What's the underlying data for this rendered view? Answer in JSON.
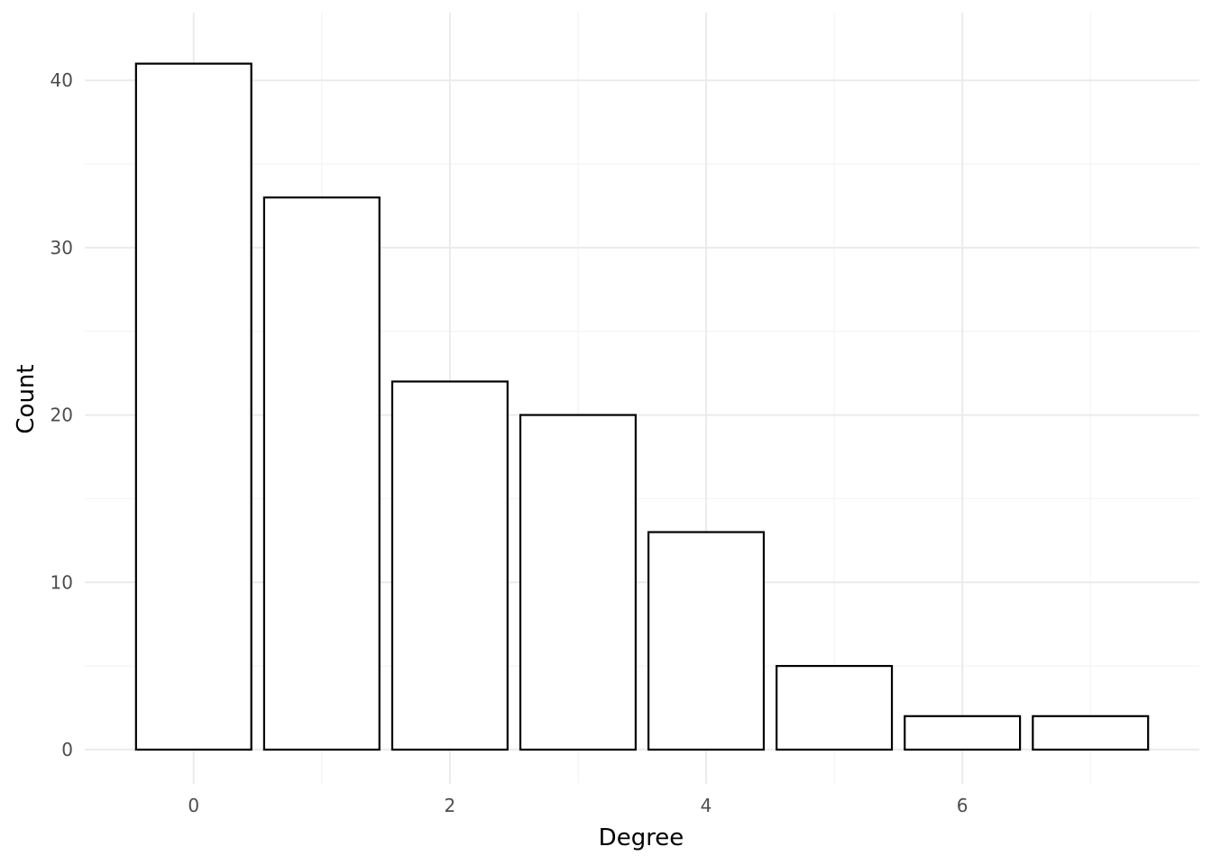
{
  "chart_data": {
    "type": "bar",
    "title": "",
    "xlabel": "Degree",
    "ylabel": "Count",
    "categories": [
      0,
      1,
      2,
      3,
      4,
      5,
      6,
      7
    ],
    "values": [
      41,
      33,
      22,
      20,
      13,
      5,
      2,
      2
    ],
    "x_ticks": [
      "0",
      "2",
      "4",
      "6"
    ],
    "y_ticks": [
      "0",
      "10",
      "20",
      "30",
      "40"
    ],
    "xlim": [
      -0.85,
      7.85
    ],
    "ylim": [
      -2.05,
      44.05
    ],
    "grid": true,
    "legend": "none",
    "colors": {
      "bar_fill": "#ffffff",
      "bar_stroke": "#000000",
      "grid_major": "#ebebeb",
      "grid_minor": "#f2f2f2",
      "tick_text": "#4d4d4d",
      "axis_title": "#000000"
    }
  }
}
